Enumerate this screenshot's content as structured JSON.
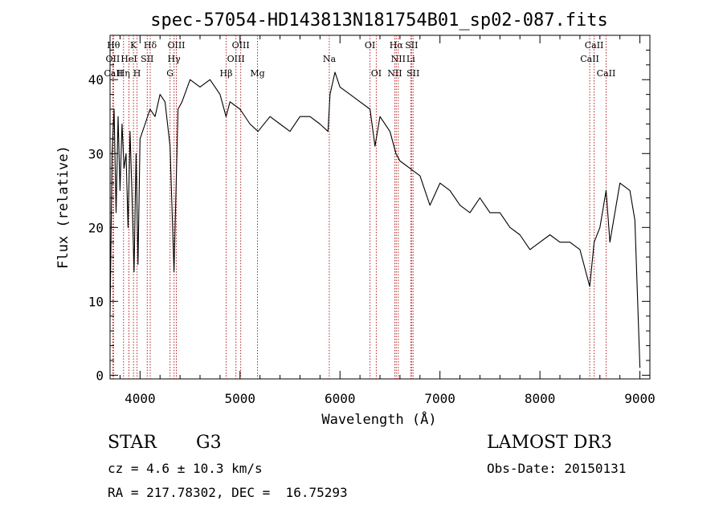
{
  "chart_data": {
    "type": "line",
    "title": "spec-57054-HD143813N181754B01_sp02-087.fits",
    "xlabel": "Wavelength (Å)",
    "ylabel": "Flux (relative)",
    "xlim": [
      3700,
      9100
    ],
    "ylim": [
      -0.5,
      46
    ],
    "x_ticks": [
      4000,
      5000,
      6000,
      7000,
      8000,
      9000
    ],
    "y_ticks": [
      0,
      10,
      20,
      30,
      40
    ],
    "series": [
      {
        "name": "spectrum",
        "x": [
          3700,
          3720,
          3740,
          3760,
          3780,
          3800,
          3820,
          3840,
          3860,
          3880,
          3900,
          3920,
          3940,
          3960,
          3980,
          4000,
          4050,
          4100,
          4150,
          4200,
          4250,
          4300,
          4340,
          4380,
          4420,
          4500,
          4600,
          4700,
          4800,
          4860,
          4900,
          5000,
          5100,
          5180,
          5300,
          5400,
          5500,
          5600,
          5700,
          5800,
          5880,
          5900,
          5950,
          6000,
          6100,
          6200,
          6300,
          6350,
          6400,
          6500,
          6560,
          6600,
          6700,
          6800,
          6900,
          7000,
          7100,
          7200,
          7300,
          7400,
          7500,
          7600,
          7700,
          7800,
          7900,
          8000,
          8100,
          8200,
          8300,
          8400,
          8498,
          8542,
          8600,
          8662,
          8700,
          8800,
          8900,
          8950,
          9000
        ],
        "y": [
          8,
          30,
          36,
          22,
          35,
          25,
          34,
          28,
          30,
          20,
          33,
          24,
          14,
          30,
          15,
          32,
          34,
          36,
          35,
          38,
          37,
          31,
          14,
          36,
          37,
          40,
          39,
          40,
          38,
          35,
          37,
          36,
          34,
          33,
          35,
          34,
          33,
          35,
          35,
          34,
          33,
          38,
          41,
          39,
          38,
          37,
          36,
          31,
          35,
          33,
          30,
          29,
          28,
          27,
          23,
          26,
          25,
          23,
          22,
          24,
          22,
          22,
          20,
          19,
          17,
          18,
          19,
          18,
          18,
          17,
          12,
          18,
          20,
          25,
          18,
          26,
          25,
          21,
          1
        ],
        "color": "#000000"
      }
    ],
    "lines": [
      {
        "x": 3734,
        "label": "Hθ",
        "tier": 1
      },
      {
        "x": 3727,
        "label": "OII",
        "tier": 2
      },
      {
        "x": 3734,
        "label": "CaII",
        "tier": 3
      },
      {
        "x": 3835,
        "label": "Hη",
        "tier": 3
      },
      {
        "x": 3889,
        "label": "HeI",
        "tier": 2
      },
      {
        "x": 3934,
        "label": "K",
        "tier": 1
      },
      {
        "x": 3970,
        "label": "H",
        "tier": 3
      },
      {
        "x": 4072,
        "label": "SII",
        "tier": 2
      },
      {
        "x": 4102,
        "label": "Hδ",
        "tier": 1
      },
      {
        "x": 4300,
        "label": "G",
        "tier": 3
      },
      {
        "x": 4340,
        "label": "Hγ",
        "tier": 2
      },
      {
        "x": 4363,
        "label": "OIII",
        "tier": 1
      },
      {
        "x": 4861,
        "label": "Hβ",
        "tier": 3
      },
      {
        "x": 4959,
        "label": "OIII",
        "tier": 2
      },
      {
        "x": 5007,
        "label": "OIII",
        "tier": 1
      },
      {
        "x": 5175,
        "label": "Mg",
        "tier": 3
      },
      {
        "x": 5893,
        "label": "Na",
        "tier": 2
      },
      {
        "x": 6300,
        "label": "OI",
        "tier": 1
      },
      {
        "x": 6363,
        "label": "OI",
        "tier": 3
      },
      {
        "x": 6548,
        "label": "NII",
        "tier": 3
      },
      {
        "x": 6563,
        "label": "Hα",
        "tier": 1
      },
      {
        "x": 6583,
        "label": "NII",
        "tier": 2
      },
      {
        "x": 6708,
        "label": "Li",
        "tier": 2
      },
      {
        "x": 6716,
        "label": "SII",
        "tier": 1
      },
      {
        "x": 6731,
        "label": "SII",
        "tier": 3
      },
      {
        "x": 8498,
        "label": "CaII",
        "tier": 2
      },
      {
        "x": 8542,
        "label": "CaII",
        "tier": 1
      },
      {
        "x": 8662,
        "label": "CaII",
        "tier": 3
      }
    ]
  },
  "info": {
    "class_label": "STAR",
    "subclass": "G3",
    "survey": "LAMOST DR3",
    "redshift": "cz = 4.6 ± 10.3 km/s",
    "obs_date": "Obs-Date: 20150131",
    "coords": "RA = 217.78302, DEC =  16.75293"
  }
}
